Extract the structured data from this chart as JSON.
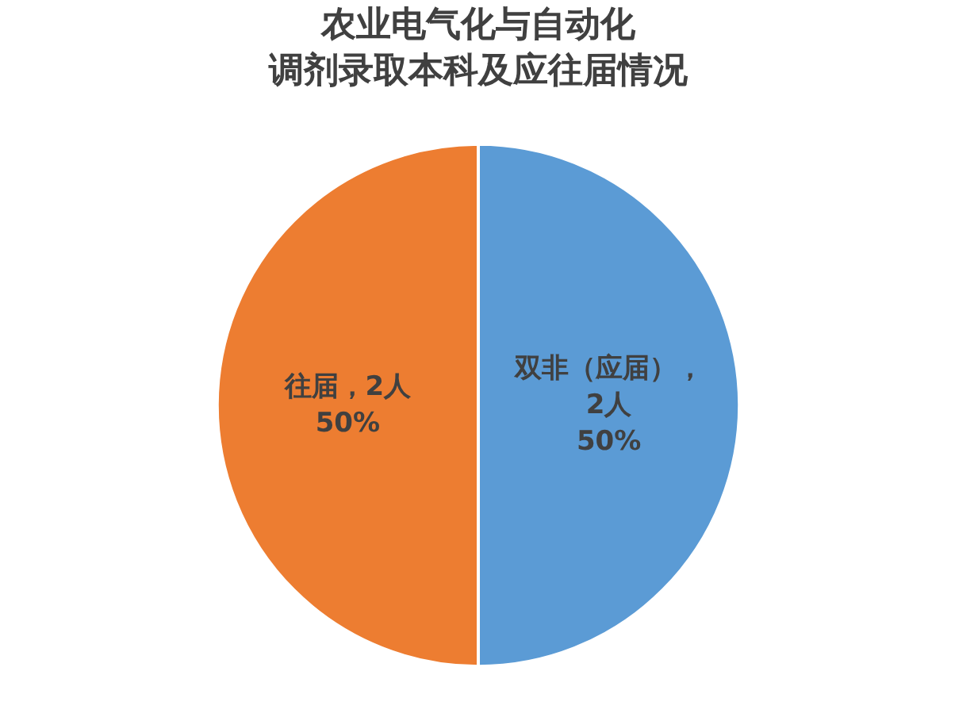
{
  "chart_data": {
    "type": "pie",
    "title": "农业电气化与自动化",
    "subtitle": "调剂录取本科及应往届情况",
    "categories": [
      "双非（应届）",
      "往届"
    ],
    "values": [
      2,
      2
    ],
    "colors": [
      "#5b9bd5",
      "#ed7d31"
    ],
    "value_labels": [
      "，\n2人\n50%",
      "，2人\n50%"
    ]
  }
}
